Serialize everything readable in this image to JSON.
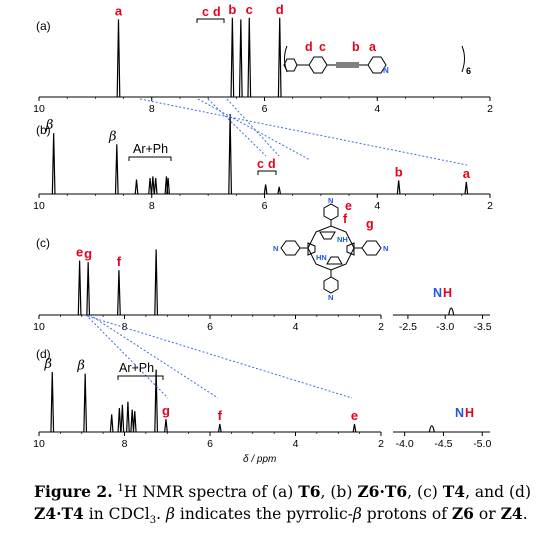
{
  "figure": {
    "panels": [
      {
        "label": "(a)",
        "axis": {
          "from": 10,
          "to": 2,
          "ticks": [
            "10",
            "8",
            "6",
            "4",
            "2"
          ]
        },
        "peaks": [
          {
            "ppm": 8.59,
            "height": 0.97,
            "label": "a",
            "label_color": "#e8001c"
          },
          {
            "ppm": 6.57,
            "height": 0.99,
            "label": "b",
            "label_color": "#e8001c"
          },
          {
            "ppm": 6.42,
            "height": 0.97
          },
          {
            "ppm": 6.27,
            "height": 0.99,
            "label": "c",
            "label_color": "#e8001c"
          },
          {
            "ppm": 5.73,
            "height": 0.99,
            "label": "d",
            "label_color": "#e8001c"
          }
        ]
      },
      {
        "label": "(b)",
        "axis": {
          "from": 10,
          "to": 2,
          "ticks": [
            "10",
            "8",
            "6",
            "4",
            "2"
          ]
        },
        "peaks": [
          {
            "ppm": 9.74,
            "height": 0.76,
            "label": "β",
            "label_color": "#000000"
          },
          {
            "ppm": 8.62,
            "height": 0.62,
            "label": "β",
            "label_color": "#000000"
          },
          {
            "ppm": 8.27,
            "height": 0.18
          },
          {
            "ppm": 8.03,
            "height": 0.2
          },
          {
            "ppm": 7.98,
            "height": 0.22
          },
          {
            "ppm": 7.93,
            "height": 0.2
          },
          {
            "ppm": 7.74,
            "height": 0.22
          },
          {
            "ppm": 7.71,
            "height": 0.2
          },
          {
            "ppm": 6.61,
            "height": 1.0
          },
          {
            "ppm": 5.98,
            "height": 0.12
          },
          {
            "ppm": 5.74,
            "height": 0.09
          },
          {
            "ppm": 3.62,
            "height": 0.17,
            "label": "b",
            "label_color": "#e8001c"
          },
          {
            "ppm": 2.42,
            "height": 0.15,
            "label": "a",
            "label_color": "#e8001c"
          }
        ]
      },
      {
        "label": "(c)",
        "axis": {
          "from": 10,
          "to": 2,
          "ticks": [
            "10",
            "8",
            "6",
            "4",
            "2"
          ]
        },
        "inset": {
          "from": -2.3,
          "to": -3.6,
          "ticks": [
            "-2.5",
            "-3.0",
            "-3.5"
          ]
        },
        "peaks": [
          {
            "ppm": 9.05,
            "height": 0.68,
            "label": "e",
            "label_color": "#e8001c"
          },
          {
            "ppm": 8.85,
            "height": 0.66,
            "label": "g",
            "label_color": "#e8001c"
          },
          {
            "ppm": 8.13,
            "height": 0.56,
            "label": "f",
            "label_color": "#e8001c"
          },
          {
            "ppm": 7.26,
            "height": 0.82
          }
        ],
        "inset_peaks": [
          {
            "ppm": -3.08,
            "height": 0.15
          }
        ]
      },
      {
        "label": "(d)",
        "axis": {
          "from": 10,
          "to": 2,
          "ticks": [
            "10",
            "8",
            "6",
            "4",
            "2"
          ]
        },
        "inset": {
          "from": -3.85,
          "to": -5.1,
          "ticks": [
            "-4.0",
            "-4.5",
            "-5.0"
          ]
        },
        "peaks": [
          {
            "ppm": 9.69,
            "height": 0.75,
            "label": "β",
            "label_color": "#000000"
          },
          {
            "ppm": 8.92,
            "height": 0.73,
            "label": "β",
            "label_color": "#000000"
          },
          {
            "ppm": 8.3,
            "height": 0.22
          },
          {
            "ppm": 8.12,
            "height": 0.3
          },
          {
            "ppm": 8.05,
            "height": 0.34
          },
          {
            "ppm": 7.92,
            "height": 0.38
          },
          {
            "ppm": 7.82,
            "height": 0.28
          },
          {
            "ppm": 7.76,
            "height": 0.26
          },
          {
            "ppm": 7.26,
            "height": 0.78
          },
          {
            "ppm": 7.03,
            "height": 0.16,
            "label": "g",
            "label_color": "#e8001c"
          },
          {
            "ppm": 5.77,
            "height": 0.1,
            "label": "f",
            "label_color": "#e8001c"
          },
          {
            "ppm": 2.62,
            "height": 0.1,
            "label": "e",
            "label_color": "#e8001c"
          }
        ],
        "inset_peaks": [
          {
            "ppm": -4.35,
            "height": 0.13
          }
        ]
      }
    ],
    "group_labels": {
      "arph_b": "Ar+Ph",
      "arph_d": "Ar+Ph",
      "cd_b": "c",
      "dd_b": "d"
    },
    "cd_header": {
      "c": "c",
      "d": "d"
    },
    "nh_label": {
      "n": "N",
      "h": "H"
    },
    "x_axis_label": "δ / ppm",
    "t6_labels": {
      "d": "d",
      "c": "c",
      "b": "b",
      "a": "a",
      "N": "N",
      "subscript": "6"
    },
    "porphyrin_labels": {
      "e": "e",
      "f": "f",
      "g": "g",
      "NH_top": "NH",
      "NH_bottom": "HN",
      "N": "N"
    },
    "colors": {
      "red": "#e8001c",
      "blue": "#1d58e8",
      "dotted_line": "#3c6ee0",
      "trace": "#000000"
    }
  },
  "caption": {
    "fig": "Figure 2.",
    "t1": " ",
    "sup1": "1",
    "t2": "H NMR spectra of (a) ",
    "b1": "T6",
    "t3": ", (b) ",
    "b2": "Z6·T6",
    "t4": ", (c) ",
    "b3": "T4",
    "t5": ", and (d) ",
    "b4": "Z4·",
    "b5": "T4",
    "t6": " in CDCl",
    "sub1": "3",
    "t7": ". ",
    "beta": "β",
    "t8": " indicates the pyrrolic-",
    "beta2": "β",
    "t9": " protons of ",
    "b6": "Z6",
    "t10": " or ",
    "b7": "Z4",
    "t11": "."
  }
}
